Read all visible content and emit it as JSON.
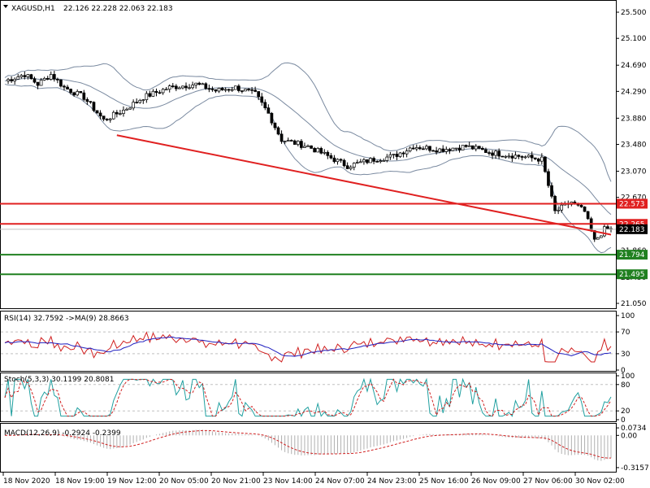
{
  "header": {
    "symbol": "XAGUSD,H1",
    "ohlc": "22.126 22.228 22.063 22.183"
  },
  "colors": {
    "candle_up": "#ffffff",
    "candle_down": "#000000",
    "bollinger": "#7a8aa0",
    "trendline": "#e02020",
    "resistance": "#e02020",
    "support": "#208020",
    "price_line": "#c0c0c0",
    "rsi": "#d02020",
    "rsi_ma": "#2020c0",
    "stoch_main": "#20a0a0",
    "stoch_signal": "#d02020",
    "macd_hist": "#b0b0b0",
    "macd_signal": "#d02020"
  },
  "price_axis": {
    "ticks": [
      "25.500",
      "25.100",
      "24.690",
      "24.290",
      "23.880",
      "23.480",
      "23.070",
      "22.670",
      "22.260",
      "21.860",
      "21.450",
      "21.050"
    ],
    "current": "22.183"
  },
  "levels": {
    "resistance": [
      {
        "price": 22.573,
        "label": "22.573"
      },
      {
        "price": 22.265,
        "label": "22.265"
      }
    ],
    "support": [
      {
        "price": 21.794,
        "label": "21.794"
      },
      {
        "price": 21.495,
        "label": "21.495"
      }
    ]
  },
  "time_axis": [
    "18 Nov 2020",
    "18 Nov 19:00",
    "19 Nov 12:00",
    "20 Nov 05:00",
    "20 Nov 21:00",
    "23 Nov 14:00",
    "24 Nov 07:00",
    "24 Nov 23:00",
    "25 Nov 16:00",
    "26 Nov 09:00",
    "27 Nov 06:00",
    "30 Nov 02:00"
  ],
  "rsi": {
    "label": "RSI(14) 32.7592  ->MA(9) 28.8663",
    "ticks": [
      "100",
      "70",
      "30",
      "0"
    ]
  },
  "stoch": {
    "label": "Stoch(5,3,3) 30.1199 20.8081",
    "ticks": [
      "100",
      "80",
      "20",
      "0"
    ]
  },
  "macd": {
    "label": "MACD(12,26,9) -0.2924 -0.2399",
    "ticks": [
      "0.0734",
      "0.00",
      "-0.3157"
    ]
  },
  "chart_data": {
    "type": "candlestick",
    "symbol": "XAGUSD",
    "timeframe": "H1",
    "ylim": [
      21.05,
      25.5
    ],
    "close_anchors": [
      {
        "t": 0,
        "v": 24.45
      },
      {
        "t": 6,
        "v": 24.55
      },
      {
        "t": 10,
        "v": 24.4
      },
      {
        "t": 14,
        "v": 24.55
      },
      {
        "t": 18,
        "v": 24.35
      },
      {
        "t": 24,
        "v": 24.2
      },
      {
        "t": 30,
        "v": 23.85
      },
      {
        "t": 36,
        "v": 24.0
      },
      {
        "t": 42,
        "v": 24.2
      },
      {
        "t": 50,
        "v": 24.35
      },
      {
        "t": 58,
        "v": 24.4
      },
      {
        "t": 64,
        "v": 24.3
      },
      {
        "t": 70,
        "v": 24.35
      },
      {
        "t": 76,
        "v": 24.25
      },
      {
        "t": 80,
        "v": 23.95
      },
      {
        "t": 84,
        "v": 23.55
      },
      {
        "t": 92,
        "v": 23.45
      },
      {
        "t": 98,
        "v": 23.3
      },
      {
        "t": 104,
        "v": 23.15
      },
      {
        "t": 112,
        "v": 23.25
      },
      {
        "t": 118,
        "v": 23.3
      },
      {
        "t": 124,
        "v": 23.45
      },
      {
        "t": 132,
        "v": 23.4
      },
      {
        "t": 140,
        "v": 23.45
      },
      {
        "t": 148,
        "v": 23.35
      },
      {
        "t": 156,
        "v": 23.3
      },
      {
        "t": 163,
        "v": 23.25
      },
      {
        "t": 167,
        "v": 22.45
      },
      {
        "t": 172,
        "v": 22.6
      },
      {
        "t": 176,
        "v": 22.45
      },
      {
        "t": 179,
        "v": 22.0
      },
      {
        "t": 182,
        "v": 22.18
      }
    ],
    "trendline": {
      "from": {
        "t": 34,
        "v": 23.62
      },
      "to": {
        "t": 184,
        "v": 22.1
      }
    },
    "bollinger": true,
    "grid": false,
    "subplots": [
      "RSI(14)",
      "Stoch(5,3,3)",
      "MACD(12,26,9)"
    ]
  }
}
